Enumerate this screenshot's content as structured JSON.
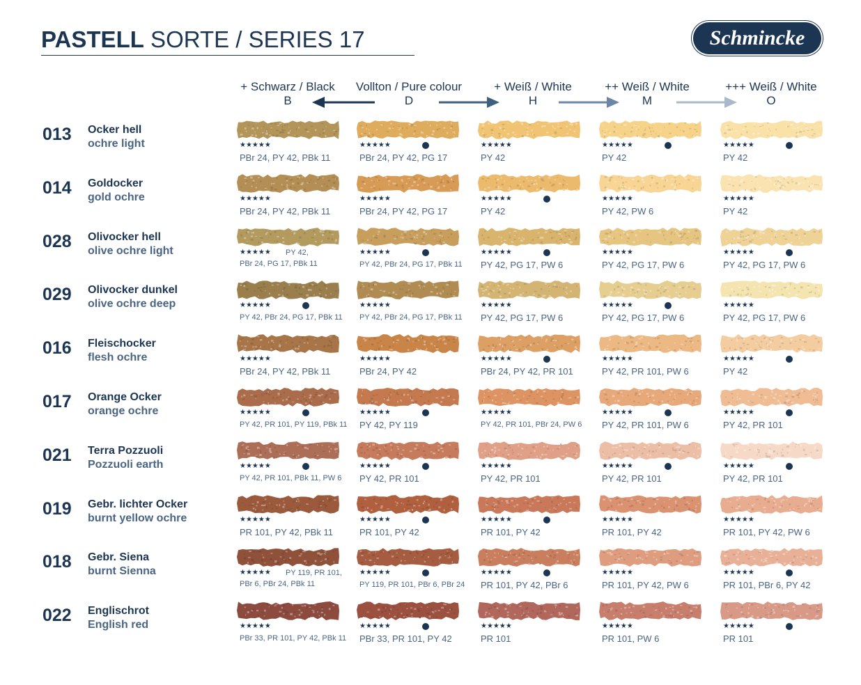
{
  "header": {
    "title_bold": "PASTELL",
    "title_rest": " SORTE / SERIES 17",
    "logo_text": "Schmincke"
  },
  "columns": [
    {
      "label": "+ Schwarz / Black",
      "code": "B"
    },
    {
      "label": "Vollton / Pure colour",
      "code": "D"
    },
    {
      "label": "+ Weiß / White",
      "code": "H"
    },
    {
      "label": "++ Weiß / White",
      "code": "M"
    },
    {
      "label": "+++ Weiß / White",
      "code": "O"
    }
  ],
  "rows": [
    {
      "num": "013",
      "de": "Ocker hell",
      "en": "ochre light",
      "cells": [
        {
          "color": "#b3955a",
          "stars": "★★★★★",
          "dot": false,
          "pigments": "PBr 24, PY 42, PBk 11"
        },
        {
          "color": "#dfab5c",
          "stars": "★★★★★",
          "dot": true,
          "pigments": "PBr 24, PY 42, PG 17"
        },
        {
          "color": "#f0c472",
          "stars": "★★★★★",
          "dot": false,
          "pigments": "PY 42"
        },
        {
          "color": "#f6d389",
          "stars": "★★★★★",
          "dot": true,
          "pigments": "PY 42"
        },
        {
          "color": "#f9e1a8",
          "stars": "★★★★★",
          "dot": true,
          "pigments": "PY 42"
        }
      ]
    },
    {
      "num": "014",
      "de": "Goldocker",
      "en": "gold ochre",
      "cells": [
        {
          "color": "#b38f55",
          "stars": "★★★★★",
          "dot": false,
          "pigments": "PBr 24, PY 42, PBk 11"
        },
        {
          "color": "#d89b55",
          "stars": "★★★★★",
          "dot": false,
          "pigments": "PBr 24, PY 42, PG 17"
        },
        {
          "color": "#ecba6d",
          "stars": "★★★★★",
          "dot": true,
          "pigments": "PY 42"
        },
        {
          "color": "#f8d594",
          "stars": "★★★★★",
          "dot": false,
          "pigments": "PY 42, PW 6"
        },
        {
          "color": "#fae3b0",
          "stars": "★★★★★",
          "dot": false,
          "pigments": "PY 42"
        }
      ]
    },
    {
      "num": "028",
      "de": "Olivocker hell",
      "en": "olive ochre light",
      "cells": [
        {
          "color": "#b39a5e",
          "stars": "★★★★★",
          "dot": false,
          "pigments": "PY 42,",
          "pigments2": "PBr 24, PG 17, PBk 11",
          "layout": "split"
        },
        {
          "color": "#c79e5c",
          "stars": "★★★★★",
          "dot": true,
          "pigments": "PY 42, PBr 24, PG 17, PBk 11",
          "layout": "small"
        },
        {
          "color": "#d9b46d",
          "stars": "★★★★★",
          "dot": true,
          "pigments": "PY 42, PG 17, PW 6"
        },
        {
          "color": "#e6c581",
          "stars": "★★★★★",
          "dot": false,
          "pigments": "PY 42, PG 17, PW 6"
        },
        {
          "color": "#eed296",
          "stars": "★★★★★",
          "dot": true,
          "pigments": "PY 42, PG 17, PW 6"
        }
      ]
    },
    {
      "num": "029",
      "de": "Olivocker dunkel",
      "en": "olive ochre deep",
      "cells": [
        {
          "color": "#9a7f4c",
          "stars": "★★★★★",
          "dot": true,
          "pigments": "PY 42, PBr 24, PG 17, PBk 11",
          "layout": "small"
        },
        {
          "color": "#b08c52",
          "stars": "★★★★★",
          "dot": false,
          "pigments": "PY 42, PBr 24, PG 17, PBk 11",
          "layout": "small"
        },
        {
          "color": "#d4b472",
          "stars": "★★★★★",
          "dot": false,
          "pigments": "PY 42, PG 17, PW 6"
        },
        {
          "color": "#e6cd90",
          "stars": "★★★★★",
          "dot": true,
          "pigments": "PY 42, PG 17, PW 6"
        },
        {
          "color": "#f4e4b0",
          "stars": "★★★★★",
          "dot": false,
          "pigments": "PY 42, PG 17, PW 6"
        }
      ]
    },
    {
      "num": "016",
      "de": "Fleischocker",
      "en": "flesh ochre",
      "cells": [
        {
          "color": "#a87548",
          "stars": "★★★★★",
          "dot": false,
          "pigments": "PBr 24, PY 42, PBk 11"
        },
        {
          "color": "#c98448",
          "stars": "★★★★★",
          "dot": false,
          "pigments": "PBr 24, PY 42"
        },
        {
          "color": "#dca064",
          "stars": "★★★★★",
          "dot": true,
          "pigments": "PBr 24, PY 42, PR 101"
        },
        {
          "color": "#ecb883",
          "stars": "★★★★★",
          "dot": false,
          "pigments": "PY 42, PR 101, PW 6"
        },
        {
          "color": "#f3cda0",
          "stars": "★★★★★",
          "dot": true,
          "pigments": "PY 42"
        }
      ]
    },
    {
      "num": "017",
      "de": "Orange Ocker",
      "en": "orange ochre",
      "cells": [
        {
          "color": "#aa6c4a",
          "stars": "★★★★★",
          "dot": true,
          "pigments": "PY 42, PR 101, PY 119, PBk 11",
          "layout": "small"
        },
        {
          "color": "#c47a4e",
          "stars": "★★★★★",
          "dot": true,
          "pigments": "PY 42, PY 119"
        },
        {
          "color": "#de9462",
          "stars": "★★★★★",
          "dot": false,
          "pigments": "PY 42, PR 101, PBr 24, PW 6",
          "layout": "small"
        },
        {
          "color": "#e8a97a",
          "stars": "★★★★★",
          "dot": true,
          "pigments": "PY 42, PR 101, PW 6"
        },
        {
          "color": "#efbc94",
          "stars": "★★★★★",
          "dot": true,
          "pigments": "PY 42, PR 101"
        }
      ]
    },
    {
      "num": "021",
      "de": "Terra Pozzuoli",
      "en": "Pozzuoli earth",
      "cells": [
        {
          "color": "#ad6e58",
          "stars": "★★★★★",
          "dot": true,
          "pigments": "PY 42, PR 101, PBk 11, PW 6",
          "layout": "small"
        },
        {
          "color": "#c77b5d",
          "stars": "★★★★★",
          "dot": true,
          "pigments": "PY 42, PR 101"
        },
        {
          "color": "#e0a087",
          "stars": "★★★★★",
          "dot": false,
          "pigments": "PY 42, PR 101"
        },
        {
          "color": "#edbea6",
          "stars": "★★★★★",
          "dot": true,
          "pigments": "PY 42, PR 101"
        },
        {
          "color": "#f6d9c6",
          "stars": "★★★★★",
          "dot": true,
          "pigments": "PY 42, PR 101"
        }
      ]
    },
    {
      "num": "019",
      "de": "Gebr. lichter Ocker",
      "en": "burnt yellow ochre",
      "cells": [
        {
          "color": "#9c5a3d",
          "stars": "★★★★★",
          "dot": false,
          "pigments": "PR 101, PY 42, PBk 11"
        },
        {
          "color": "#b0603f",
          "stars": "★★★★★",
          "dot": true,
          "pigments": "PR 101, PY 42"
        },
        {
          "color": "#c9795a",
          "stars": "★★★★★",
          "dot": true,
          "pigments": "PR 101, PY 42"
        },
        {
          "color": "#da9270",
          "stars": "★★★★★",
          "dot": false,
          "pigments": "PR 101, PY 42"
        },
        {
          "color": "#e8ad90",
          "stars": "★★★★★",
          "dot": false,
          "pigments": "PR 101, PY 42, PW 6"
        }
      ]
    },
    {
      "num": "018",
      "de": "Gebr. Siena",
      "en": "burnt Sienna",
      "cells": [
        {
          "color": "#8f513a",
          "stars": "★★★★★",
          "dot": false,
          "pigments": "PY 119, PR 101,",
          "pigments2": "PBr 6, PBr 24, PBk 11",
          "layout": "split"
        },
        {
          "color": "#a65c40",
          "stars": "★★★★★",
          "dot": true,
          "pigments": "PY 119, PR 101, PBr 6, PBr 24",
          "layout": "small"
        },
        {
          "color": "#c97e5e",
          "stars": "★★★★★",
          "dot": true,
          "pigments": "PR 101, PY 42, PBr 6"
        },
        {
          "color": "#df9d7f",
          "stars": "★★★★★",
          "dot": false,
          "pigments": "PR 101, PY 42, PW 6"
        },
        {
          "color": "#e8b096",
          "stars": "★★★★★",
          "dot": true,
          "pigments": "PR 101, PBr 6, PY 42"
        }
      ]
    },
    {
      "num": "022",
      "de": "Englischrot",
      "en": "English red",
      "cells": [
        {
          "color": "#8c4b3e",
          "stars": "★★★★★",
          "dot": false,
          "pigments": "PBr 33, PR 101, PY 42, PBk 11",
          "layout": "small"
        },
        {
          "color": "#9c5140",
          "stars": "★★★★★",
          "dot": true,
          "pigments": "PBr 33, PR 101, PY 42"
        },
        {
          "color": "#b1675c",
          "stars": "★★★★★",
          "dot": false,
          "pigments": "PR 101"
        },
        {
          "color": "#c77e6d",
          "stars": "★★★★★",
          "dot": false,
          "pigments": "PR 101, PW 6"
        },
        {
          "color": "#d99987",
          "stars": "★★★★★",
          "dot": true,
          "pigments": "PR 101"
        }
      ]
    }
  ],
  "arrow_colors": [
    "#1c3553",
    "#3f5f80",
    "#6b86a6",
    "#a8b9cc"
  ]
}
